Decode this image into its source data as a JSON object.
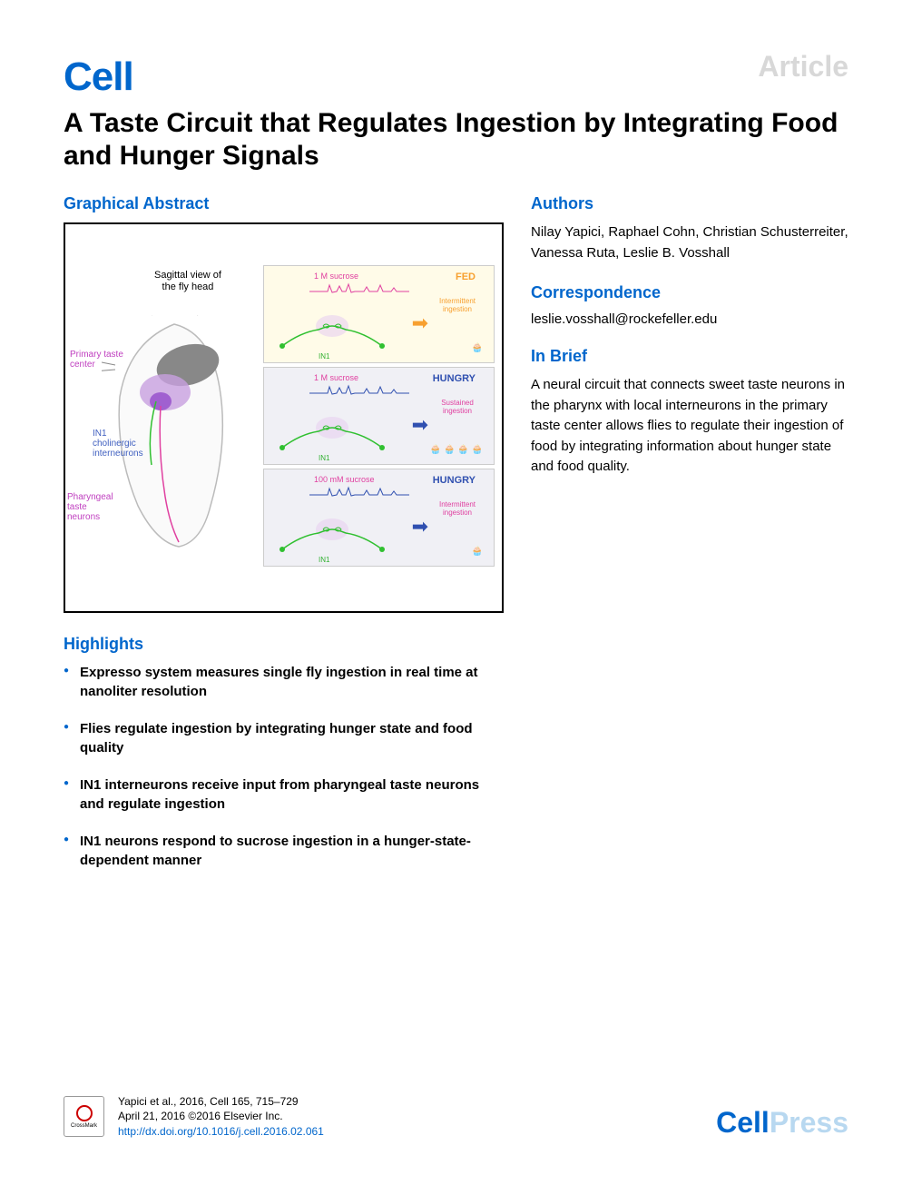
{
  "header": {
    "article_label": "Article",
    "journal_logo": "Cell",
    "title": "A Taste Circuit that Regulates Ingestion by Integrating Food and Hunger Signals"
  },
  "graphical_abstract": {
    "heading": "Graphical Abstract",
    "sagittal_label": "Sagittal view of\nthe fly head",
    "labels": {
      "primary_taste": "Primary taste\ncenter",
      "in1": "IN1\ncholinergic\ninterneurons",
      "pharyngeal": "Pharyngeal\ntaste\nneurons"
    },
    "panels": [
      {
        "sucrose": "1 M sucrose",
        "state": "FED",
        "state_class": "fed-c",
        "ingest": "Intermittent\ningestion",
        "ingest_class": "fed-c",
        "arrow_class": "orange",
        "bg_class": "fed",
        "cups": "🧁",
        "in1": "IN1",
        "trace_color": "#e040a0"
      },
      {
        "sucrose": "1 M sucrose",
        "state": "HUNGRY",
        "state_class": "hungry-c",
        "ingest": "Sustained\ningestion",
        "ingest_class": "hungry-c",
        "arrow_class": "blue",
        "bg_class": "hungry",
        "cups": "🧁 🧁 🧁 🧁",
        "in1": "IN1",
        "trace_color": "#3050b0"
      },
      {
        "sucrose": "100 mM sucrose",
        "state": "HUNGRY",
        "state_class": "hungry-c",
        "ingest": "Intermittent\ningestion",
        "ingest_class": "hungry-c",
        "arrow_class": "blue",
        "bg_class": "hungry",
        "cups": "🧁",
        "in1": "IN1",
        "trace_color": "#3050b0"
      }
    ],
    "colors": {
      "neuron_green": "#30c030",
      "label_magenta": "#c040c0",
      "label_blue": "#4060c0",
      "brain_fill": "#c8a0e0",
      "head_outline": "#bbb"
    }
  },
  "authors": {
    "heading": "Authors",
    "text": "Nilay Yapici, Raphael Cohn, Christian Schusterreiter, Vanessa Ruta, Leslie B. Vosshall"
  },
  "correspondence": {
    "heading": "Correspondence",
    "email": "leslie.vosshall@rockefeller.edu"
  },
  "in_brief": {
    "heading": "In Brief",
    "text": "A neural circuit that connects sweet taste neurons in the pharynx with local interneurons in the primary taste center allows flies to regulate their ingestion of food by integrating information about hunger state and food quality."
  },
  "highlights": {
    "heading": "Highlights",
    "items": [
      "Expresso system measures single fly ingestion in real time at nanoliter resolution",
      "Flies regulate ingestion by integrating hunger state and food quality",
      "IN1 interneurons receive input from pharyngeal taste neurons and regulate ingestion",
      "IN1 neurons respond to sucrose ingestion in a hunger-state-dependent manner"
    ]
  },
  "footer": {
    "crossmark": "CrossMark",
    "citation_line1": "Yapici et al., 2016, Cell 165, 715–729",
    "citation_line2": "April 21, 2016 ©2016 Elsevier Inc.",
    "doi": "http://dx.doi.org/10.1016/j.cell.2016.02.061",
    "cellpress_cell": "Cell",
    "cellpress_press": "Press"
  }
}
